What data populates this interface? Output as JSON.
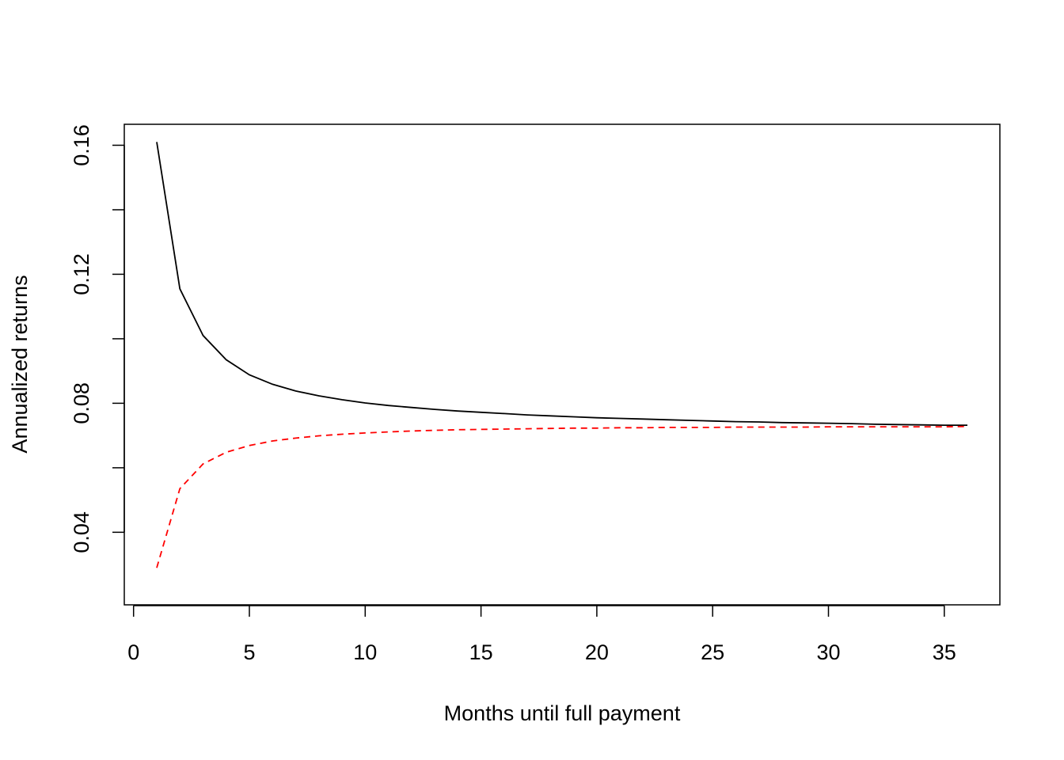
{
  "chart_data": {
    "type": "line",
    "xlabel": "Months until full payment",
    "ylabel": "Annualized returns",
    "xlim": [
      -0.4,
      37.4
    ],
    "ylim": [
      0.0175,
      0.1665
    ],
    "x_ticks": [
      0,
      5,
      10,
      15,
      20,
      25,
      30,
      35
    ],
    "x_tick_labels": [
      "0",
      "5",
      "10",
      "15",
      "20",
      "25",
      "30",
      "35"
    ],
    "y_ticks": [
      0.04,
      0.06,
      0.08,
      0.1,
      0.12,
      0.14,
      0.16
    ],
    "y_tick_labels": [
      "0.04",
      "",
      "0.08",
      "",
      "0.12",
      "",
      "0.16"
    ],
    "grid": false,
    "x": [
      1,
      2,
      3,
      4,
      5,
      6,
      7,
      8,
      9,
      10,
      11,
      12,
      13,
      14,
      15,
      16,
      17,
      18,
      19,
      20,
      21,
      22,
      23,
      24,
      25,
      26,
      27,
      28,
      29,
      30,
      31,
      32,
      33,
      34,
      35,
      36
    ],
    "series": [
      {
        "color": "#000000",
        "dash": "solid",
        "values": [
          0.161,
          0.1155,
          0.101,
          0.0935,
          0.0888,
          0.0859,
          0.0838,
          0.0823,
          0.0811,
          0.0801,
          0.0793,
          0.0787,
          0.0781,
          0.0776,
          0.0772,
          0.0768,
          0.0764,
          0.0761,
          0.0758,
          0.0755,
          0.0753,
          0.0751,
          0.0749,
          0.0747,
          0.0745,
          0.0743,
          0.0742,
          0.074,
          0.0739,
          0.0738,
          0.0737,
          0.0735,
          0.0734,
          0.0733,
          0.0732,
          0.0732
        ]
      },
      {
        "color": "#ff0000",
        "dash": "dashed",
        "values": [
          0.029,
          0.0535,
          0.0612,
          0.0648,
          0.0669,
          0.0683,
          0.0692,
          0.0699,
          0.0704,
          0.0708,
          0.0711,
          0.0714,
          0.0716,
          0.0718,
          0.0719,
          0.072,
          0.0721,
          0.0722,
          0.0723,
          0.0723,
          0.0724,
          0.0724,
          0.0725,
          0.0725,
          0.0725,
          0.0726,
          0.0726,
          0.0726,
          0.0726,
          0.0727,
          0.0727,
          0.0727,
          0.0727,
          0.0727,
          0.0727,
          0.0728
        ]
      }
    ]
  }
}
